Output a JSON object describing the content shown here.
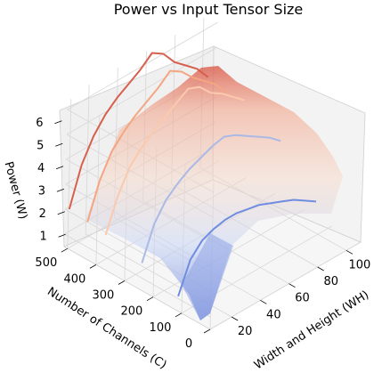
{
  "chart_data": {
    "type": "surface3d",
    "title": "Power vs Input Tensor Size",
    "xlabel": "Width and Height (WH)",
    "ylabel": "Number of Channels (C)",
    "zlabel": "Power (W)",
    "x_ticks": [
      "20",
      "40",
      "60",
      "80",
      "100"
    ],
    "y_ticks": [
      "0",
      "100",
      "200",
      "300",
      "400",
      "500"
    ],
    "z_ticks": [
      "1",
      "2",
      "3",
      "4",
      "5",
      "6"
    ],
    "xlim": [
      5,
      110
    ],
    "ylim": [
      0,
      512
    ],
    "zlim": [
      0.5,
      6.5
    ],
    "grid": true,
    "colormap": "coolwarm",
    "x": [
      8,
      16,
      24,
      32,
      40,
      48,
      56,
      64,
      72,
      80,
      88,
      96,
      104
    ],
    "lines": [
      {
        "c": 512,
        "color": "#d6604d",
        "values": [
          1.9,
          3.4,
          4.3,
          4.9,
          5.3,
          5.6,
          5.9,
          6.3,
          6.0,
          5.4,
          5.0,
          4.6,
          4.0
        ]
      },
      {
        "c": 448,
        "color": "#f4a582",
        "values": [
          1.8,
          3.2,
          4.1,
          4.6,
          5.0,
          5.3,
          5.6,
          6.0,
          5.7,
          5.2,
          4.8,
          4.4,
          3.8
        ]
      },
      {
        "c": 384,
        "color": "#fbc9ad",
        "values": [
          1.7,
          3.0,
          3.9,
          4.4,
          4.8,
          5.1,
          5.4,
          5.7,
          5.5,
          5.0,
          4.7,
          4.3,
          3.9
        ]
      },
      {
        "c": 256,
        "color": "#aab9e6",
        "values": [
          1.4,
          2.7,
          3.4,
          3.8,
          4.1,
          4.3,
          4.5,
          4.6,
          4.4,
          4.1,
          3.8,
          3.5,
          3.1
        ]
      },
      {
        "c": 128,
        "color": "#6f8de0",
        "values": [
          0.9,
          2.1,
          2.6,
          2.8,
          2.9,
          2.9,
          2.8,
          2.7,
          2.5,
          2.3,
          2.1,
          1.8,
          1.5
        ]
      }
    ]
  }
}
